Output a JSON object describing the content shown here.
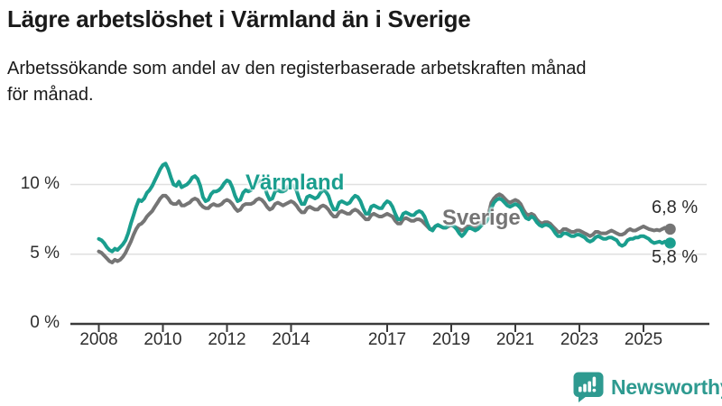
{
  "title": "Lägre arbetslöshet i Värmland än i Sverige",
  "subtitle_line1": "Arbetssökande som andel av den registerbaserade arbetskraften månad",
  "subtitle_line2": "för månad.",
  "branding": {
    "logo_text": "Newsworthy",
    "logo_color": "#2E9A90"
  },
  "chart_data": {
    "type": "line",
    "x_start": "2008-01",
    "x_interval": "monthly",
    "x_tick_years": [
      2008,
      2010,
      2012,
      2014,
      2017,
      2019,
      2021,
      2023,
      2025
    ],
    "y_ticks": [
      {
        "value": 0,
        "label": "0 %"
      },
      {
        "value": 5,
        "label": "5 %"
      },
      {
        "value": 10,
        "label": "10 %"
      }
    ],
    "ylim": [
      0,
      12.5
    ],
    "grid": "horizontal",
    "legend_position": "inline-labels",
    "axis_color": "#3a3a3a",
    "grid_color": "#e0e0e0",
    "series": [
      {
        "name": "Sverige",
        "color": "#757575",
        "end_label": "6,8 %",
        "end_value": 6.8,
        "values": [
          5.2,
          5.1,
          4.9,
          4.7,
          4.5,
          4.4,
          4.6,
          4.5,
          4.6,
          4.8,
          5.1,
          5.5,
          5.9,
          6.4,
          6.8,
          7.1,
          7.2,
          7.4,
          7.7,
          7.9,
          8.1,
          8.4,
          8.7,
          9.0,
          9.2,
          9.2,
          9.0,
          8.7,
          8.6,
          8.6,
          8.8,
          8.5,
          8.5,
          8.6,
          8.7,
          8.9,
          9.0,
          8.9,
          8.6,
          8.4,
          8.3,
          8.3,
          8.5,
          8.6,
          8.5,
          8.5,
          8.6,
          8.8,
          8.9,
          8.8,
          8.6,
          8.3,
          8.1,
          8.2,
          8.5,
          8.6,
          8.6,
          8.6,
          8.7,
          8.9,
          9.0,
          8.9,
          8.7,
          8.4,
          8.2,
          8.3,
          8.6,
          8.7,
          8.6,
          8.5,
          8.6,
          8.7,
          8.8,
          8.7,
          8.5,
          8.2,
          8.0,
          8.0,
          8.3,
          8.4,
          8.3,
          8.2,
          8.2,
          8.4,
          8.5,
          8.4,
          8.2,
          7.9,
          7.7,
          7.7,
          8.0,
          8.1,
          8.0,
          7.9,
          7.9,
          8.1,
          8.2,
          8.1,
          7.9,
          7.7,
          7.5,
          7.5,
          7.8,
          7.9,
          7.8,
          7.7,
          7.7,
          7.8,
          7.9,
          7.8,
          7.7,
          7.4,
          7.2,
          7.2,
          7.5,
          7.6,
          7.5,
          7.4,
          7.4,
          7.5,
          7.5,
          7.4,
          7.2,
          7.0,
          6.8,
          6.8,
          7.0,
          7.1,
          7.0,
          6.9,
          6.9,
          7.0,
          7.1,
          7.0,
          6.9,
          6.8,
          6.7,
          6.8,
          7.0,
          7.0,
          6.9,
          6.9,
          7.0,
          7.2,
          7.4,
          7.5,
          7.9,
          8.7,
          9.0,
          9.2,
          9.3,
          9.2,
          9.0,
          8.8,
          8.7,
          8.8,
          8.9,
          8.8,
          8.6,
          8.2,
          7.9,
          7.8,
          7.9,
          7.8,
          7.5,
          7.3,
          7.2,
          7.3,
          7.3,
          7.2,
          7.0,
          6.8,
          6.6,
          6.6,
          6.8,
          6.8,
          6.7,
          6.6,
          6.6,
          6.7,
          6.7,
          6.6,
          6.5,
          6.4,
          6.3,
          6.4,
          6.6,
          6.6,
          6.5,
          6.5,
          6.5,
          6.6,
          6.7,
          6.6,
          6.5,
          6.4,
          6.4,
          6.5,
          6.7,
          6.8,
          6.7,
          6.7,
          6.8,
          6.9,
          7.0,
          6.9,
          6.8,
          6.75,
          6.7,
          6.75,
          6.7,
          6.8,
          6.9,
          6.85,
          6.8
        ]
      },
      {
        "name": "Värmland",
        "color": "#1A9E8E",
        "end_label": "5,8 %",
        "end_value": 5.8,
        "values": [
          6.1,
          6.0,
          5.8,
          5.5,
          5.3,
          5.2,
          5.4,
          5.3,
          5.5,
          5.7,
          6.0,
          6.5,
          7.2,
          7.8,
          8.4,
          8.9,
          8.8,
          9.0,
          9.4,
          9.6,
          9.9,
          10.3,
          10.7,
          11.1,
          11.4,
          11.5,
          11.1,
          10.5,
          10.0,
          9.9,
          10.2,
          9.8,
          9.9,
          10.0,
          10.2,
          10.5,
          10.6,
          10.4,
          9.9,
          9.1,
          8.8,
          8.9,
          9.3,
          9.5,
          9.5,
          9.6,
          9.8,
          10.1,
          10.3,
          10.2,
          9.8,
          9.2,
          8.8,
          8.9,
          9.4,
          9.6,
          9.5,
          9.6,
          9.8,
          10.1,
          10.3,
          10.2,
          9.9,
          9.3,
          8.9,
          9.0,
          9.5,
          9.6,
          9.5,
          9.5,
          9.6,
          9.9,
          10.0,
          9.9,
          9.6,
          9.0,
          8.6,
          8.6,
          9.1,
          9.2,
          9.1,
          9.0,
          9.1,
          9.4,
          9.6,
          9.5,
          9.2,
          8.6,
          8.2,
          8.2,
          8.7,
          8.8,
          8.7,
          8.6,
          8.7,
          9.0,
          9.2,
          9.1,
          8.8,
          8.3,
          7.9,
          7.9,
          8.4,
          8.5,
          8.4,
          8.3,
          8.3,
          8.6,
          8.8,
          8.7,
          8.4,
          7.9,
          7.5,
          7.5,
          7.9,
          8.0,
          7.9,
          7.8,
          7.8,
          8.0,
          8.1,
          8.0,
          7.7,
          7.2,
          6.8,
          6.7,
          7.0,
          7.1,
          7.0,
          6.9,
          6.9,
          7.1,
          7.1,
          7.0,
          6.8,
          6.5,
          6.3,
          6.5,
          6.8,
          6.9,
          6.8,
          6.7,
          6.8,
          7.0,
          7.2,
          7.3,
          7.6,
          8.3,
          8.7,
          8.9,
          9.0,
          8.9,
          8.7,
          8.5,
          8.4,
          8.5,
          8.6,
          8.5,
          8.3,
          7.9,
          7.6,
          7.5,
          7.7,
          7.6,
          7.3,
          7.1,
          7.0,
          7.1,
          7.1,
          7.0,
          6.8,
          6.5,
          6.3,
          6.3,
          6.5,
          6.5,
          6.4,
          6.3,
          6.3,
          6.4,
          6.4,
          6.3,
          6.2,
          6.0,
          5.9,
          6.0,
          6.2,
          6.3,
          6.2,
          6.1,
          6.1,
          6.2,
          6.2,
          6.1,
          6.0,
          5.7,
          5.6,
          5.7,
          6.0,
          6.1,
          6.1,
          6.2,
          6.2,
          6.3,
          6.3,
          6.2,
          6.1,
          5.9,
          5.8,
          5.85,
          5.9,
          5.8,
          5.9,
          5.85,
          5.8
        ]
      }
    ]
  }
}
